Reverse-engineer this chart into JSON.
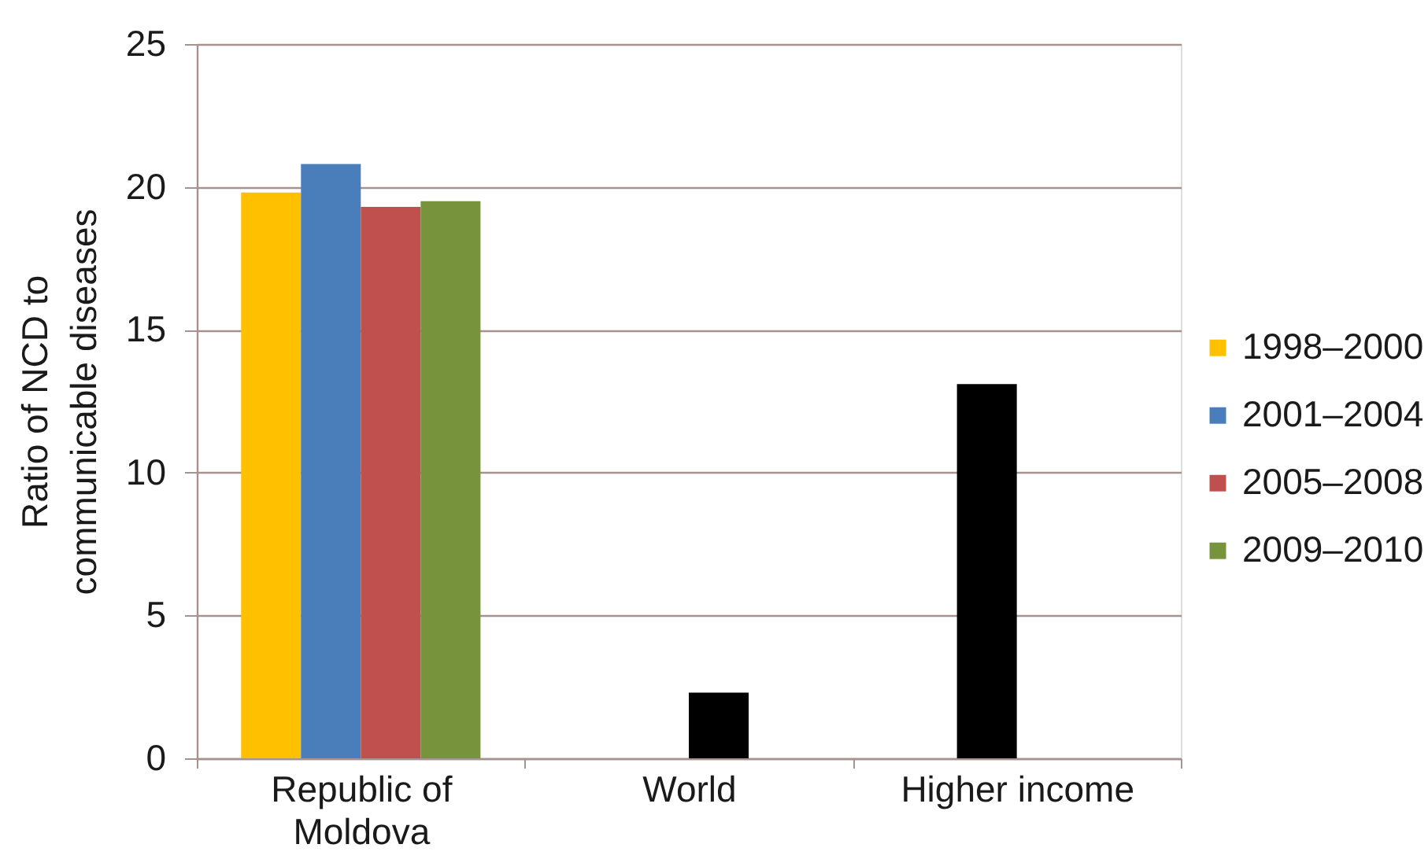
{
  "chart_data": {
    "type": "bar",
    "ylabel": "Ratio of NCD to communicable diseases",
    "categories": [
      "Republic of Moldova",
      "World",
      "Higher income"
    ],
    "series": [
      {
        "name": "1998–2000",
        "color": "#ffc000",
        "values": [
          19.8,
          null,
          null
        ]
      },
      {
        "name": "2001–2004",
        "color": "#4a7ebb",
        "colors": [
          "#4a7ebb",
          null,
          "#000000"
        ],
        "values": [
          20.8,
          null,
          13.1
        ]
      },
      {
        "name": "2005–2008",
        "color": "#c0504d",
        "colors": [
          "#c0504d",
          "#000000",
          null
        ],
        "values": [
          19.3,
          2.3,
          null
        ]
      },
      {
        "name": "2009–2010",
        "color": "#77933c",
        "values": [
          19.5,
          null,
          null
        ]
      }
    ],
    "ylim": [
      0,
      25
    ],
    "yticks": [
      0,
      5,
      10,
      15,
      20,
      25
    ],
    "grid": "y",
    "legend": "right"
  }
}
